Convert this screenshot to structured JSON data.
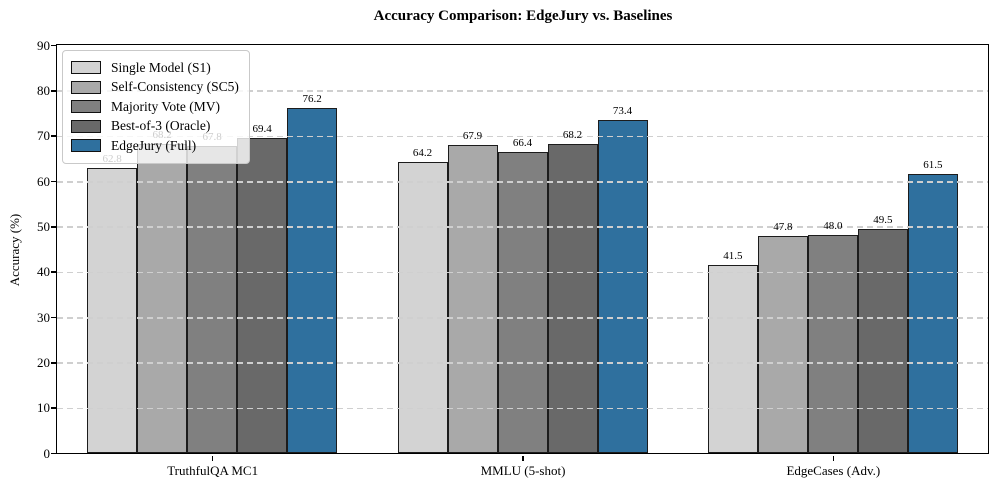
{
  "chart_data": {
    "type": "bar",
    "title": "Accuracy Comparison: EdgeJury vs. Baselines",
    "xlabel": "",
    "ylabel": "Accuracy (%)",
    "categories": [
      "TruthfulQA MC1",
      "MMLU (5-shot)",
      "EdgeCases (Adv.)"
    ],
    "series": [
      {
        "name": "Single Model (S1)",
        "color": "#d3d3d3",
        "values": [
          62.8,
          64.2,
          41.5
        ]
      },
      {
        "name": "Self-Consistency (SC5)",
        "color": "#a9a9a9",
        "values": [
          68.2,
          67.9,
          47.8
        ]
      },
      {
        "name": "Majority Vote (MV)",
        "color": "#808080",
        "values": [
          67.8,
          66.4,
          48.0
        ]
      },
      {
        "name": "Best-of-3 (Oracle)",
        "color": "#696969",
        "values": [
          69.4,
          68.2,
          49.5
        ]
      },
      {
        "name": "EdgeJury (Full)",
        "color": "#2f709e",
        "values": [
          76.2,
          73.4,
          61.5
        ]
      }
    ],
    "ylim": [
      0,
      90
    ],
    "yticks": [
      0,
      10,
      20,
      30,
      40,
      50,
      60,
      70,
      80,
      90
    ],
    "grid": "dashed-horizontal-over-bars",
    "grid_color": "#cfcfcf",
    "bar_edge_color": "#1c1c1c",
    "legend_position": "upper-left",
    "value_label_decimals": 1
  }
}
